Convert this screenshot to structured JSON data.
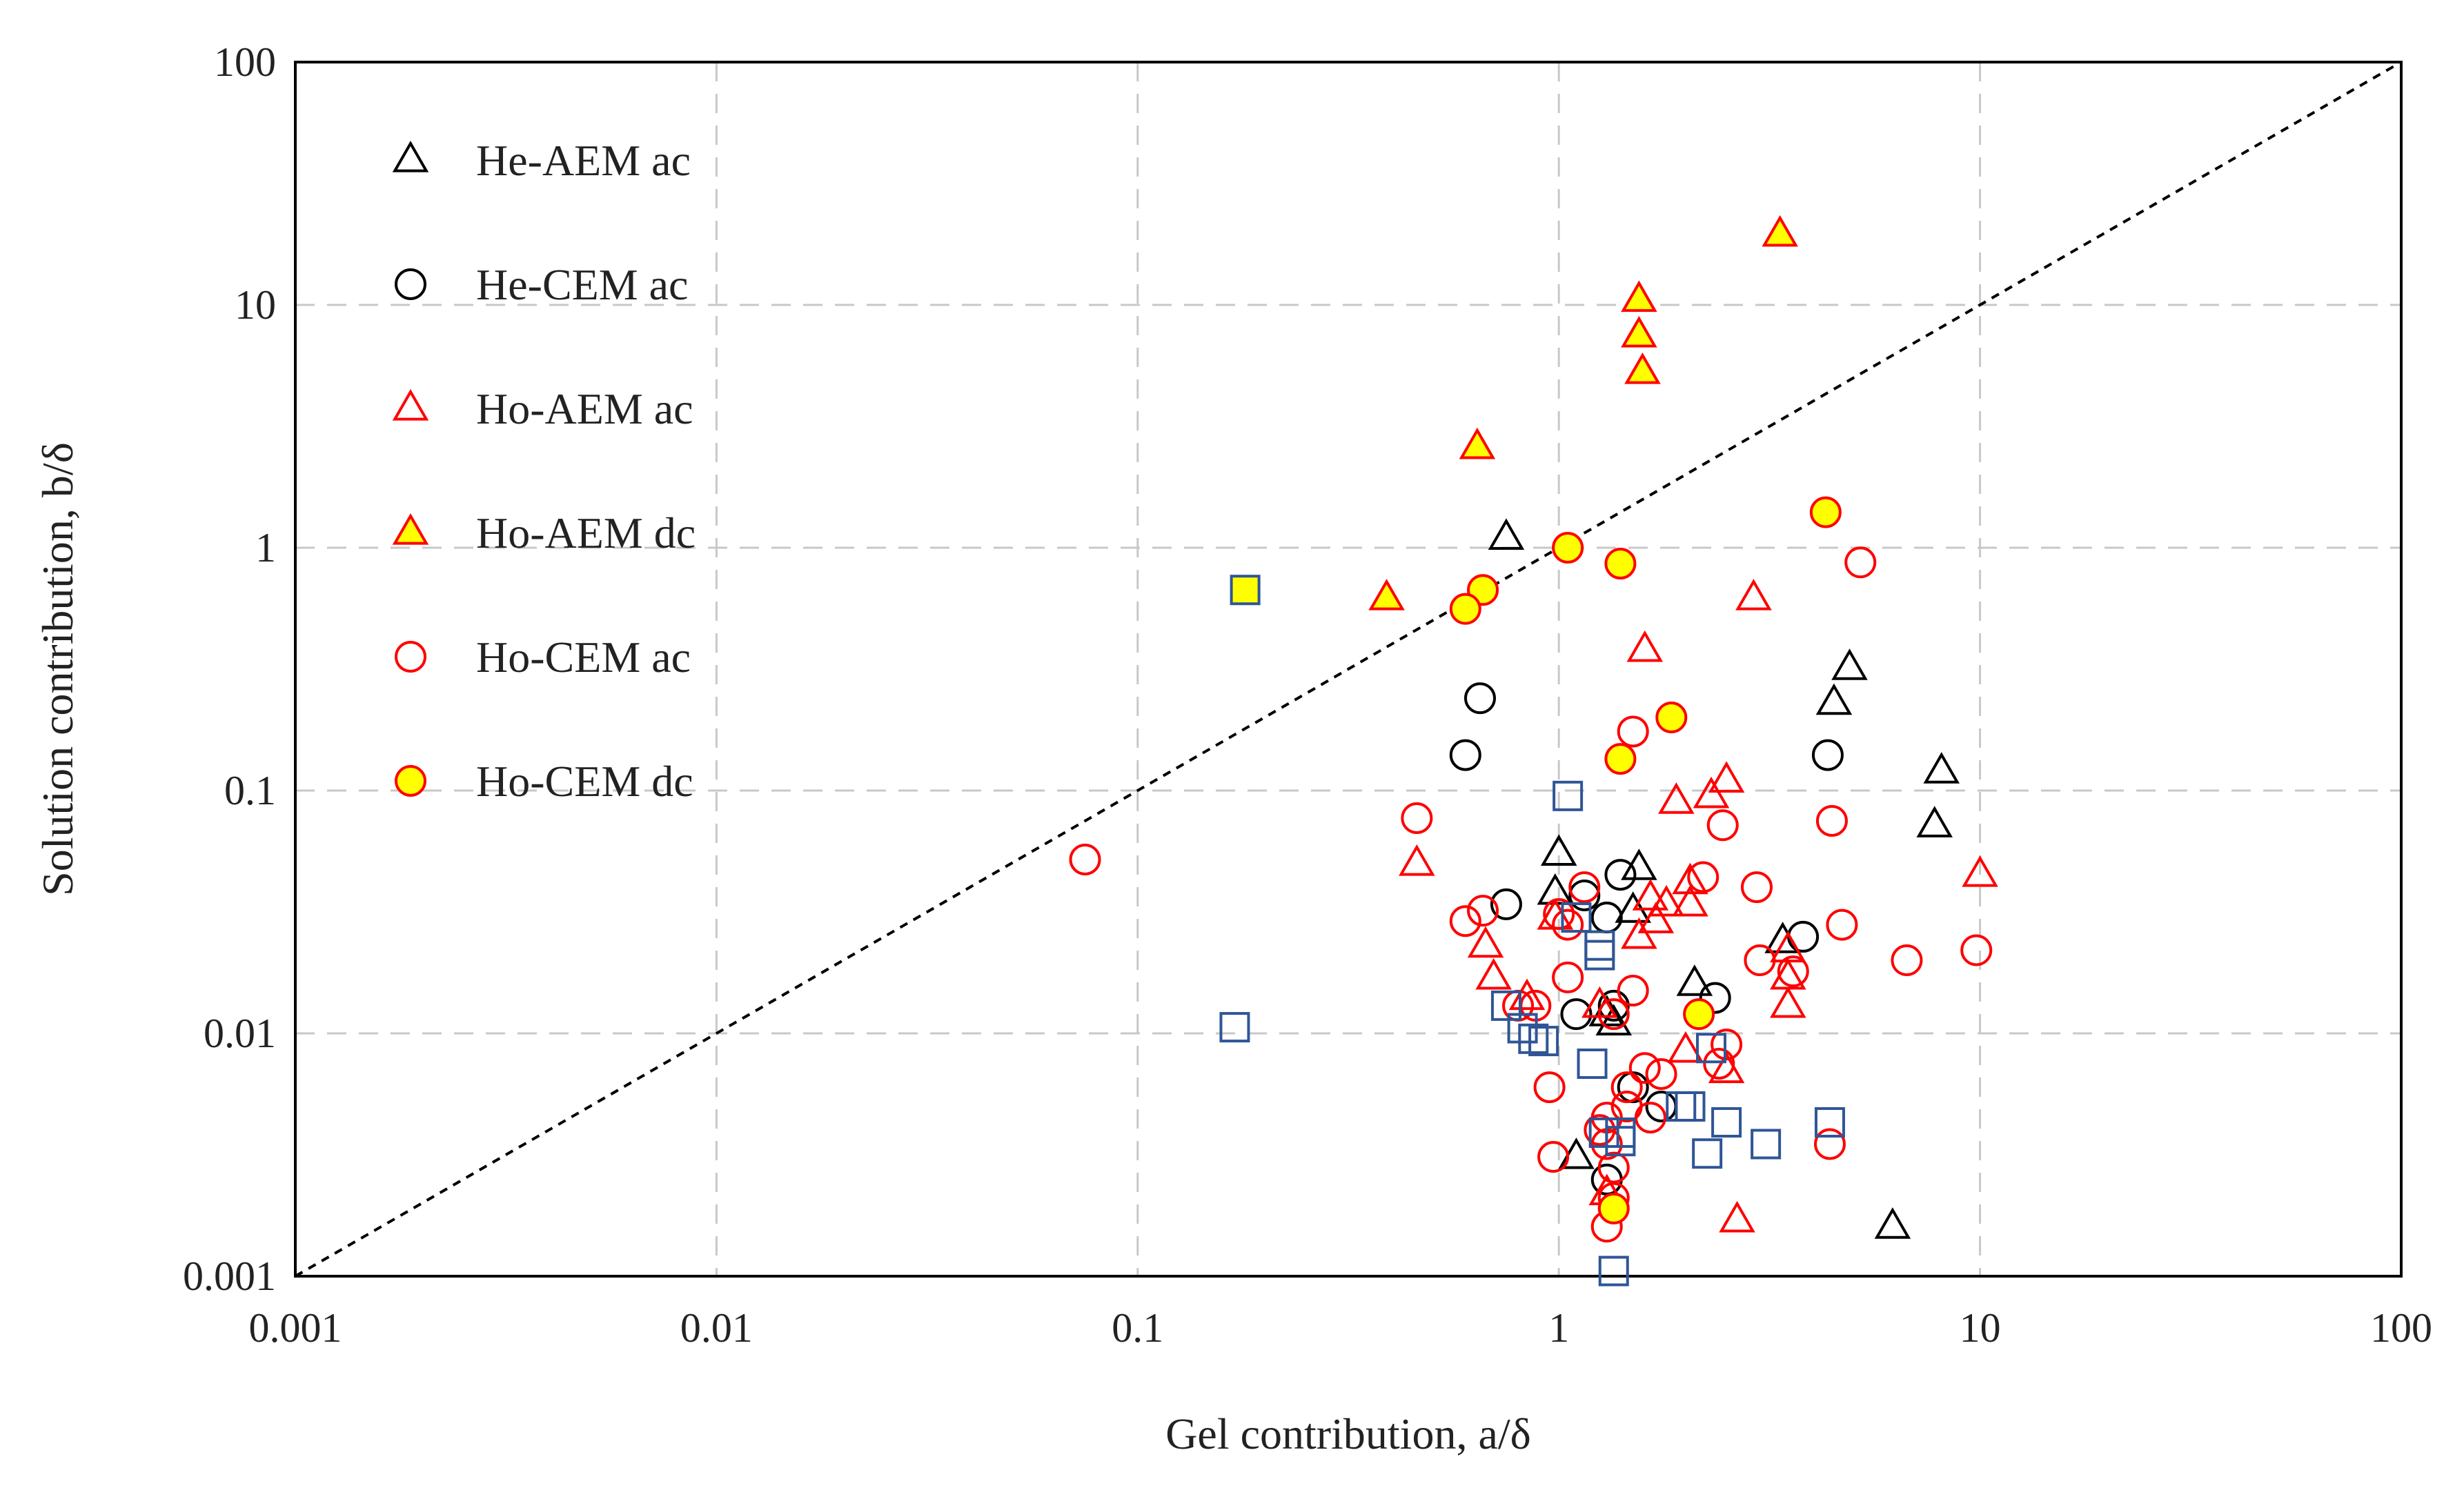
{
  "chart_data": {
    "type": "scatter",
    "xscale": "log",
    "yscale": "log",
    "xlim": [
      0.001,
      100
    ],
    "ylim": [
      0.001,
      100
    ],
    "xlabel": "Gel contribution, a/δ",
    "ylabel": "Solution contribution, b/δ",
    "x_ticks": [
      "0.001",
      "0.01",
      "0.1",
      "1",
      "10",
      "100"
    ],
    "y_ticks": [
      "0.001",
      "0.01",
      "0.1",
      "1",
      "10",
      "100"
    ],
    "grid": true,
    "legend_position": "top-left",
    "reference_line": {
      "name": "y = x",
      "style": "dashed",
      "color": "#000000"
    },
    "series": [
      {
        "name": "He-AEM ac",
        "marker": "triangle",
        "stroke": "#000000",
        "fill": "none",
        "in_legend": true,
        "points": [
          [
            0.75,
            1.1
          ],
          [
            4.9,
            0.32
          ],
          [
            4.5,
            0.23
          ],
          [
            8.1,
            0.12
          ],
          [
            7.8,
            0.072
          ],
          [
            1.0,
            0.055
          ],
          [
            1.55,
            0.048
          ],
          [
            0.98,
            0.038
          ],
          [
            1.5,
            0.032
          ],
          [
            3.4,
            0.024
          ],
          [
            2.1,
            0.016
          ],
          [
            1.35,
            0.011
          ],
          [
            1.1,
            0.0031
          ],
          [
            6.2,
            0.0016
          ],
          [
            1.3,
            0.012
          ]
        ]
      },
      {
        "name": "He-CEM ac",
        "marker": "circle",
        "stroke": "#000000",
        "fill": "none",
        "in_legend": true,
        "points": [
          [
            0.65,
            0.24
          ],
          [
            0.6,
            0.14
          ],
          [
            4.35,
            0.14
          ],
          [
            0.75,
            0.034
          ],
          [
            1.4,
            0.045
          ],
          [
            1.15,
            0.037
          ],
          [
            1.3,
            0.03
          ],
          [
            3.8,
            0.025
          ],
          [
            1.35,
            0.013
          ],
          [
            1.1,
            0.012
          ],
          [
            2.35,
            0.014
          ],
          [
            1.5,
            0.006
          ],
          [
            1.75,
            0.005
          ],
          [
            1.3,
            0.0025
          ]
        ]
      },
      {
        "name": "Ho-AEM ac",
        "marker": "triangle",
        "stroke": "#ff0000",
        "fill": "none",
        "in_legend": true,
        "points": [
          [
            1.6,
            0.38
          ],
          [
            2.9,
            0.62
          ],
          [
            2.5,
            0.11
          ],
          [
            2.3,
            0.095
          ],
          [
            1.9,
            0.09
          ],
          [
            10.0,
            0.045
          ],
          [
            0.46,
            0.05
          ],
          [
            2.05,
            0.042
          ],
          [
            2.05,
            0.034
          ],
          [
            1.65,
            0.036
          ],
          [
            1.8,
            0.034
          ],
          [
            1.7,
            0.029
          ],
          [
            1.55,
            0.025
          ],
          [
            0.67,
            0.023
          ],
          [
            0.7,
            0.017
          ],
          [
            0.84,
            0.014
          ],
          [
            3.5,
            0.017
          ],
          [
            3.5,
            0.013
          ],
          [
            3.5,
            0.022
          ],
          [
            1.25,
            0.013
          ],
          [
            2.5,
            0.007
          ],
          [
            2.0,
            0.0085
          ],
          [
            2.65,
            0.0017
          ],
          [
            1.3,
            0.0022
          ],
          [
            0.98,
            0.03
          ]
        ]
      },
      {
        "name": "Ho-AEM dc",
        "marker": "triangle",
        "stroke": "#ff0000",
        "fill": "#ffff00",
        "in_legend": true,
        "points": [
          [
            3.35,
            19.5
          ],
          [
            1.55,
            10.5
          ],
          [
            1.55,
            7.5
          ],
          [
            1.58,
            5.3
          ],
          [
            0.64,
            2.6
          ],
          [
            0.39,
            0.62
          ]
        ]
      },
      {
        "name": "Ho-CEM ac",
        "marker": "circle",
        "stroke": "#ff0000",
        "fill": "none",
        "in_legend": true,
        "points": [
          [
            0.075,
            0.052
          ],
          [
            5.2,
            0.87
          ],
          [
            0.46,
            0.077
          ],
          [
            4.45,
            0.075
          ],
          [
            2.45,
            0.072
          ],
          [
            1.5,
            0.175
          ],
          [
            2.2,
            0.044
          ],
          [
            1.15,
            0.04
          ],
          [
            0.6,
            0.029
          ],
          [
            0.66,
            0.032
          ],
          [
            1.0,
            0.031
          ],
          [
            1.05,
            0.028
          ],
          [
            2.95,
            0.04
          ],
          [
            4.7,
            0.028
          ],
          [
            9.8,
            0.022
          ],
          [
            6.7,
            0.02
          ],
          [
            3.0,
            0.02
          ],
          [
            3.6,
            0.018
          ],
          [
            1.05,
            0.017
          ],
          [
            1.5,
            0.015
          ],
          [
            0.88,
            0.013
          ],
          [
            0.8,
            0.013
          ],
          [
            1.35,
            0.012
          ],
          [
            2.5,
            0.009
          ],
          [
            2.4,
            0.0075
          ],
          [
            1.6,
            0.0072
          ],
          [
            1.75,
            0.0068
          ],
          [
            1.45,
            0.006
          ],
          [
            0.95,
            0.006
          ],
          [
            1.45,
            0.005
          ],
          [
            1.3,
            0.0045
          ],
          [
            1.25,
            0.004
          ],
          [
            0.97,
            0.0031
          ],
          [
            4.4,
            0.0035
          ],
          [
            1.35,
            0.0028
          ],
          [
            1.35,
            0.0021
          ],
          [
            1.3,
            0.0016
          ],
          [
            1.65,
            0.0045
          ],
          [
            1.3,
            0.0035
          ]
        ]
      },
      {
        "name": "Ho-CEM dc",
        "marker": "circle",
        "stroke": "#ff0000",
        "fill": "#ffff00",
        "in_legend": true,
        "points": [
          [
            4.3,
            1.4
          ],
          [
            1.05,
            1.0
          ],
          [
            1.4,
            0.86
          ],
          [
            0.66,
            0.67
          ],
          [
            0.6,
            0.56
          ],
          [
            1.85,
            0.2
          ],
          [
            1.4,
            0.135
          ],
          [
            2.15,
            0.012
          ],
          [
            1.35,
            0.0019
          ]
        ]
      },
      {
        "name": "",
        "marker": "square",
        "stroke": "#2f5597",
        "fill": "none",
        "in_legend": false,
        "points": [
          [
            1.05,
            0.095
          ],
          [
            0.17,
            0.0106
          ],
          [
            1.25,
            0.023
          ],
          [
            1.25,
            0.021
          ],
          [
            1.1,
            0.03
          ],
          [
            0.75,
            0.013
          ],
          [
            0.82,
            0.0105
          ],
          [
            0.87,
            0.0095
          ],
          [
            0.92,
            0.0093
          ],
          [
            1.2,
            0.0075
          ],
          [
            2.3,
            0.0087
          ],
          [
            1.95,
            0.005
          ],
          [
            2.05,
            0.005
          ],
          [
            2.5,
            0.0043
          ],
          [
            4.4,
            0.0043
          ],
          [
            3.1,
            0.0035
          ],
          [
            2.25,
            0.0032
          ],
          [
            1.28,
            0.0039
          ],
          [
            1.4,
            0.0039
          ],
          [
            1.4,
            0.0036
          ],
          [
            1.35,
            0.00105
          ]
        ]
      },
      {
        "name": "",
        "marker": "square",
        "stroke": "#2f5597",
        "fill": "#ffff00",
        "in_legend": false,
        "points": [
          [
            0.18,
            0.67
          ]
        ]
      }
    ]
  }
}
